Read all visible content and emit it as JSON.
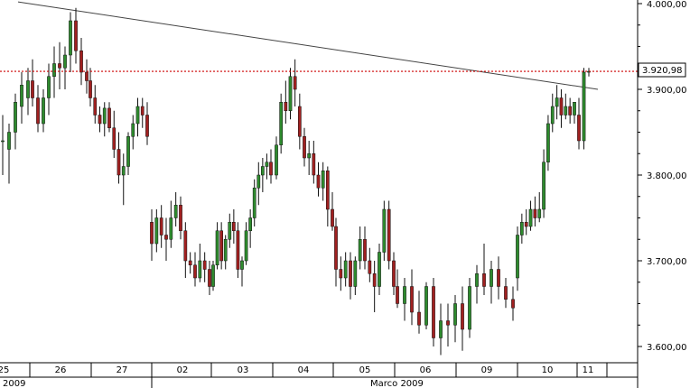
{
  "chart_data": {
    "type": "candlestick",
    "title": "",
    "xlabel": "",
    "ylabel": "",
    "ylim": [
      3585,
      4000
    ],
    "y_ticks": [
      "4.000,00",
      "3.900,00",
      "3.800,00",
      "3.700,00",
      "3.600,00"
    ],
    "y_tick_values": [
      4000,
      3900,
      3800,
      3700,
      3600
    ],
    "current_price_label": "3.920,98",
    "current_price": 3920.98,
    "x_day_labels": [
      "25",
      "26",
      "27",
      "02",
      "03",
      "04",
      "05",
      "06",
      "09",
      "10",
      "11"
    ],
    "x_month_labels": [
      "2009",
      "Marco 2009"
    ],
    "grid": false,
    "up_color": "#2e8b2e",
    "down_color": "#a02020",
    "trendline": {
      "from": [
        0,
        4002
      ],
      "to": [
        94,
        3900
      ]
    },
    "candles": [
      [
        3840,
        3870,
        3800,
        3840
      ],
      [
        3830,
        3860,
        3790,
        3850
      ],
      [
        3850,
        3895,
        3830,
        3885
      ],
      [
        3880,
        3920,
        3860,
        3905
      ],
      [
        3890,
        3925,
        3870,
        3910
      ],
      [
        3910,
        3935,
        3880,
        3890
      ],
      [
        3890,
        3905,
        3850,
        3860
      ],
      [
        3860,
        3900,
        3850,
        3890
      ],
      [
        3890,
        3930,
        3870,
        3915
      ],
      [
        3915,
        3950,
        3890,
        3930
      ],
      [
        3930,
        3955,
        3900,
        3925
      ],
      [
        3925,
        3950,
        3900,
        3940
      ],
      [
        3940,
        3990,
        3920,
        3980
      ],
      [
        3980,
        3995,
        3930,
        3945
      ],
      [
        3945,
        3960,
        3905,
        3920
      ],
      [
        3920,
        3935,
        3895,
        3910
      ],
      [
        3910,
        3925,
        3880,
        3890
      ],
      [
        3890,
        3905,
        3860,
        3870
      ],
      [
        3870,
        3880,
        3850,
        3860
      ],
      [
        3860,
        3885,
        3845,
        3878
      ],
      [
        3878,
        3885,
        3850,
        3855
      ],
      [
        3855,
        3875,
        3820,
        3830
      ],
      [
        3830,
        3850,
        3790,
        3800
      ],
      [
        3800,
        3825,
        3765,
        3810
      ],
      [
        3810,
        3850,
        3800,
        3845
      ],
      [
        3845,
        3870,
        3830,
        3860
      ],
      [
        3860,
        3890,
        3845,
        3880
      ],
      [
        3880,
        3890,
        3855,
        3870
      ],
      [
        3870,
        3885,
        3835,
        3845
      ],
      [
        3745,
        3760,
        3700,
        3720
      ],
      [
        3720,
        3760,
        3710,
        3750
      ],
      [
        3750,
        3765,
        3715,
        3730
      ],
      [
        3730,
        3750,
        3700,
        3725
      ],
      [
        3725,
        3770,
        3715,
        3750
      ],
      [
        3750,
        3780,
        3740,
        3765
      ],
      [
        3765,
        3775,
        3725,
        3735
      ],
      [
        3735,
        3745,
        3680,
        3700
      ],
      [
        3700,
        3710,
        3685,
        3695
      ],
      [
        3695,
        3710,
        3670,
        3680
      ],
      [
        3680,
        3720,
        3675,
        3700
      ],
      [
        3700,
        3710,
        3675,
        3690
      ],
      [
        3690,
        3700,
        3660,
        3670
      ],
      [
        3670,
        3700,
        3665,
        3695
      ],
      [
        3695,
        3745,
        3690,
        3735
      ],
      [
        3735,
        3745,
        3690,
        3700
      ],
      [
        3700,
        3730,
        3690,
        3725
      ],
      [
        3725,
        3755,
        3715,
        3745
      ],
      [
        3745,
        3760,
        3720,
        3735
      ],
      [
        3735,
        3745,
        3680,
        3690
      ],
      [
        3690,
        3705,
        3670,
        3700
      ],
      [
        3700,
        3745,
        3695,
        3735
      ],
      [
        3735,
        3760,
        3715,
        3750
      ],
      [
        3750,
        3795,
        3740,
        3785
      ],
      [
        3785,
        3815,
        3765,
        3800
      ],
      [
        3800,
        3820,
        3780,
        3810
      ],
      [
        3810,
        3825,
        3795,
        3815
      ],
      [
        3815,
        3830,
        3790,
        3800
      ],
      [
        3800,
        3845,
        3795,
        3835
      ],
      [
        3835,
        3895,
        3825,
        3885
      ],
      [
        3885,
        3910,
        3860,
        3875
      ],
      [
        3875,
        3925,
        3865,
        3915
      ],
      [
        3915,
        3935,
        3880,
        3900
      ],
      [
        3880,
        3895,
        3830,
        3845
      ],
      [
        3845,
        3855,
        3810,
        3820
      ],
      [
        3820,
        3840,
        3800,
        3825
      ],
      [
        3825,
        3840,
        3790,
        3800
      ],
      [
        3800,
        3815,
        3775,
        3785
      ],
      [
        3785,
        3815,
        3770,
        3805
      ],
      [
        3805,
        3810,
        3740,
        3760
      ],
      [
        3760,
        3780,
        3735,
        3740
      ],
      [
        3740,
        3750,
        3670,
        3690
      ],
      [
        3690,
        3705,
        3665,
        3680
      ],
      [
        3680,
        3710,
        3670,
        3700
      ],
      [
        3700,
        3710,
        3655,
        3670
      ],
      [
        3670,
        3705,
        3660,
        3700
      ],
      [
        3700,
        3740,
        3690,
        3725
      ],
      [
        3725,
        3740,
        3690,
        3700
      ],
      [
        3700,
        3715,
        3675,
        3685
      ],
      [
        3685,
        3700,
        3640,
        3670
      ],
      [
        3670,
        3720,
        3660,
        3710
      ],
      [
        3710,
        3770,
        3700,
        3760
      ],
      [
        3760,
        3770,
        3690,
        3700
      ],
      [
        3700,
        3710,
        3660,
        3670
      ],
      [
        3670,
        3690,
        3645,
        3650
      ],
      [
        3650,
        3680,
        3630,
        3670
      ],
      [
        3670,
        3690,
        3625,
        3640
      ],
      [
        3640,
        3665,
        3615,
        3625
      ],
      [
        3625,
        3675,
        3620,
        3670
      ],
      [
        3670,
        3680,
        3600,
        3610
      ],
      [
        3610,
        3650,
        3590,
        3630
      ],
      [
        3630,
        3650,
        3600,
        3625
      ],
      [
        3625,
        3660,
        3605,
        3650
      ],
      [
        3650,
        3670,
        3595,
        3620
      ],
      [
        3620,
        3680,
        3610,
        3670
      ],
      [
        3670,
        3695,
        3650,
        3685
      ],
      [
        3685,
        3720,
        3660,
        3670
      ],
      [
        3670,
        3700,
        3650,
        3690
      ],
      [
        3690,
        3705,
        3655,
        3670
      ],
      [
        3670,
        3680,
        3645,
        3655
      ],
      [
        3655,
        3670,
        3630,
        3645
      ],
      [
        3680,
        3740,
        3665,
        3730
      ],
      [
        3730,
        3755,
        3720,
        3745
      ],
      [
        3745,
        3760,
        3730,
        3740
      ],
      [
        3740,
        3770,
        3735,
        3760
      ],
      [
        3760,
        3775,
        3740,
        3750
      ],
      [
        3750,
        3780,
        3745,
        3760
      ],
      [
        3760,
        3830,
        3750,
        3815
      ],
      [
        3815,
        3870,
        3805,
        3860
      ],
      [
        3860,
        3895,
        3850,
        3880
      ],
      [
        3880,
        3905,
        3865,
        3890
      ],
      [
        3890,
        3900,
        3855,
        3870
      ],
      [
        3870,
        3895,
        3865,
        3880
      ],
      [
        3880,
        3890,
        3860,
        3870
      ],
      [
        3870,
        3885,
        3860,
        3885
      ],
      [
        3870,
        3890,
        3830,
        3840
      ],
      [
        3840,
        3925,
        3830,
        3920
      ],
      [
        3920,
        3925,
        3915,
        3921
      ]
    ]
  },
  "colors": {
    "axis": "#000000",
    "price_line": "#cc0000",
    "trendline": "#444444",
    "background": "#ffffff"
  }
}
